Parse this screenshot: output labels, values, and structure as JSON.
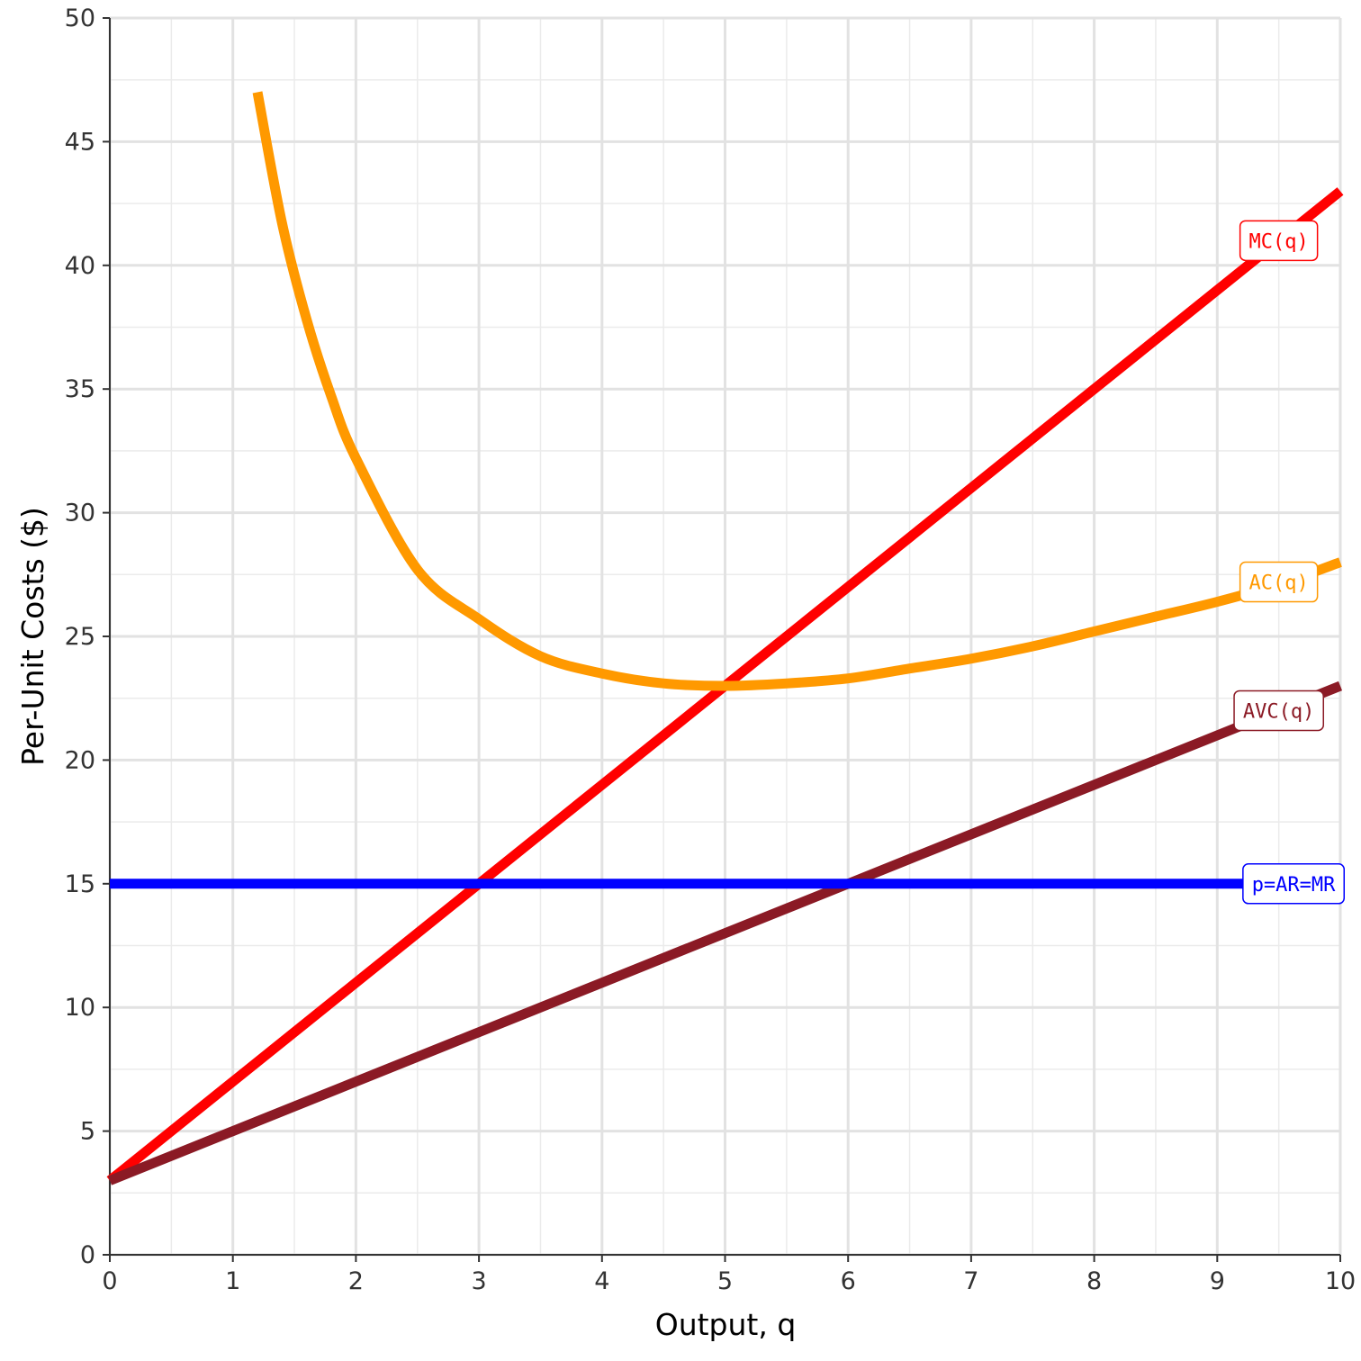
{
  "chart_data": {
    "type": "line",
    "title": "",
    "xlabel": "Output, q",
    "ylabel": "Per-Unit Costs ($)",
    "xlim": [
      0,
      10
    ],
    "ylim": [
      0,
      50
    ],
    "x_ticks": [
      "0",
      "1",
      "2",
      "3",
      "4",
      "5",
      "6",
      "7",
      "8",
      "9",
      "10"
    ],
    "y_ticks": [
      "0",
      "5",
      "10",
      "15",
      "20",
      "25",
      "30",
      "35",
      "40",
      "45",
      "50"
    ],
    "grid": true,
    "legend": "none",
    "series": [
      {
        "name": "MC(q)",
        "color": "#ff0000",
        "x": [
          0,
          1,
          2,
          3,
          4,
          5,
          6,
          7,
          8,
          9,
          10
        ],
        "y": [
          3,
          7,
          11,
          15,
          19,
          23,
          27,
          31,
          35,
          39,
          43
        ]
      },
      {
        "name": "AC(q)",
        "color": "#ff9900",
        "x": [
          1.2,
          1.4,
          1.6,
          1.8,
          2,
          2.5,
          3,
          3.5,
          4,
          4.5,
          5,
          5.5,
          6,
          6.5,
          7,
          7.5,
          8,
          8.5,
          9,
          9.5,
          10
        ],
        "y": [
          47,
          41.7,
          37.8,
          34.7,
          32.2,
          27.7,
          25.7,
          24.2,
          23.5,
          23.1,
          23.0,
          23.1,
          23.3,
          23.7,
          24.1,
          24.6,
          25.2,
          25.8,
          26.4,
          27.1,
          28.0
        ]
      },
      {
        "name": "AVC(q)",
        "color": "#8b1a25",
        "x": [
          0,
          1,
          2,
          3,
          4,
          5,
          6,
          7,
          8,
          9,
          10
        ],
        "y": [
          3,
          5,
          7,
          9,
          11,
          13,
          15,
          17,
          19,
          21,
          23
        ]
      },
      {
        "name": "p=AR=MR",
        "color": "#0000ff",
        "x": [
          0,
          10
        ],
        "y": [
          15,
          15
        ]
      }
    ]
  }
}
